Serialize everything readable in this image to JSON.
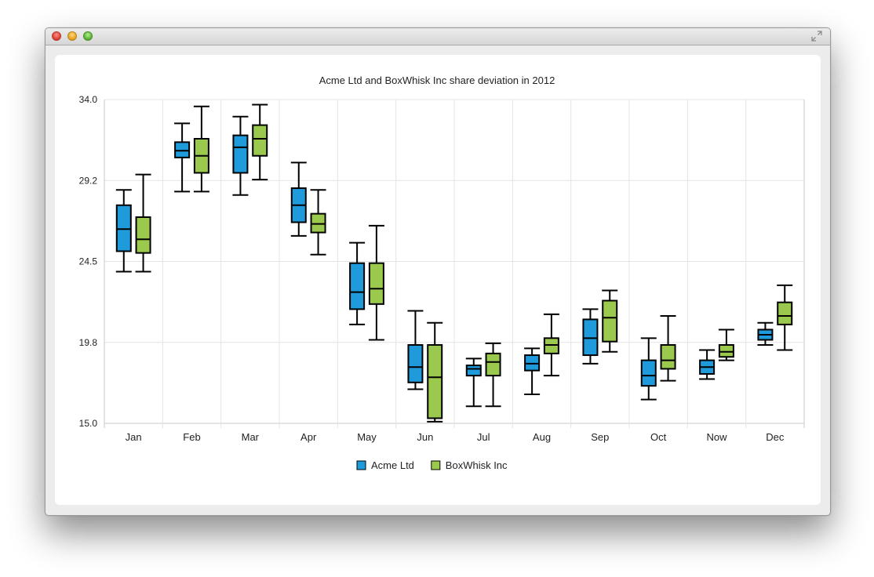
{
  "window": {
    "buttons": [
      "close-icon",
      "minimize-icon",
      "zoom-icon"
    ],
    "fullscreen_icon": "fullscreen-icon"
  },
  "colors": {
    "acme": "#1f9bdb",
    "boxwhisk": "#9bc94e",
    "grid": "#e4e4e4",
    "axis": "#c8c8c8",
    "text": "#222222"
  },
  "chart_data": {
    "type": "boxplot",
    "title": "Acme Ltd and BoxWhisk Inc share deviation in 2012",
    "xlabel": "",
    "ylabel": "",
    "ylim": [
      15.0,
      34.0
    ],
    "y_ticks": [
      "34.0",
      "29.2",
      "24.5",
      "19.8",
      "15.0"
    ],
    "y_tick_values": [
      34.0,
      29.25,
      24.5,
      19.75,
      15.0
    ],
    "grid": true,
    "legend_position": "bottom",
    "categories": [
      "Jan",
      "Feb",
      "Mar",
      "Apr",
      "May",
      "Jun",
      "Jul",
      "Aug",
      "Sep",
      "Oct",
      "Now",
      "Dec"
    ],
    "series": [
      {
        "name": "Acme Ltd",
        "color": "#1f9bdb",
        "boxes": [
          {
            "min": 23.9,
            "q1": 25.1,
            "median": 26.4,
            "q3": 27.8,
            "max": 28.7
          },
          {
            "min": 28.6,
            "q1": 30.6,
            "median": 31.0,
            "q3": 31.5,
            "max": 32.6
          },
          {
            "min": 28.4,
            "q1": 29.7,
            "median": 31.2,
            "q3": 31.9,
            "max": 33.0
          },
          {
            "min": 26.0,
            "q1": 26.8,
            "median": 27.8,
            "q3": 28.8,
            "max": 30.3
          },
          {
            "min": 20.8,
            "q1": 21.7,
            "median": 22.7,
            "q3": 24.4,
            "max": 25.6
          },
          {
            "min": 17.0,
            "q1": 17.4,
            "median": 18.3,
            "q3": 19.6,
            "max": 21.6
          },
          {
            "min": 16.0,
            "q1": 17.8,
            "median": 18.2,
            "q3": 18.4,
            "max": 18.8
          },
          {
            "min": 16.7,
            "q1": 18.1,
            "median": 18.5,
            "q3": 19.0,
            "max": 19.4
          },
          {
            "min": 18.5,
            "q1": 19.0,
            "median": 20.0,
            "q3": 21.1,
            "max": 21.7
          },
          {
            "min": 16.4,
            "q1": 17.2,
            "median": 17.8,
            "q3": 18.7,
            "max": 20.0
          },
          {
            "min": 17.6,
            "q1": 17.9,
            "median": 18.3,
            "q3": 18.7,
            "max": 19.3
          },
          {
            "min": 19.6,
            "q1": 19.9,
            "median": 20.2,
            "q3": 20.5,
            "max": 20.9
          }
        ]
      },
      {
        "name": "BoxWhisk Inc",
        "color": "#9bc94e",
        "boxes": [
          {
            "min": 23.9,
            "q1": 25.0,
            "median": 25.8,
            "q3": 27.1,
            "max": 29.6
          },
          {
            "min": 28.6,
            "q1": 29.7,
            "median": 30.7,
            "q3": 31.7,
            "max": 33.6
          },
          {
            "min": 29.3,
            "q1": 30.7,
            "median": 31.7,
            "q3": 32.5,
            "max": 33.7
          },
          {
            "min": 24.9,
            "q1": 26.2,
            "median": 26.7,
            "q3": 27.3,
            "max": 28.7
          },
          {
            "min": 19.9,
            "q1": 22.0,
            "median": 22.9,
            "q3": 24.4,
            "max": 26.6
          },
          {
            "min": 15.1,
            "q1": 15.3,
            "median": 17.7,
            "q3": 19.6,
            "max": 20.9
          },
          {
            "min": 16.0,
            "q1": 17.8,
            "median": 18.6,
            "q3": 19.1,
            "max": 19.7
          },
          {
            "min": 17.8,
            "q1": 19.1,
            "median": 19.6,
            "q3": 20.0,
            "max": 21.4
          },
          {
            "min": 19.2,
            "q1": 19.8,
            "median": 21.2,
            "q3": 22.2,
            "max": 22.8
          },
          {
            "min": 17.5,
            "q1": 18.2,
            "median": 18.7,
            "q3": 19.6,
            "max": 21.3
          },
          {
            "min": 18.7,
            "q1": 18.9,
            "median": 19.2,
            "q3": 19.6,
            "max": 20.5
          },
          {
            "min": 19.3,
            "q1": 20.8,
            "median": 21.3,
            "q3": 22.1,
            "max": 23.1
          }
        ]
      }
    ]
  }
}
